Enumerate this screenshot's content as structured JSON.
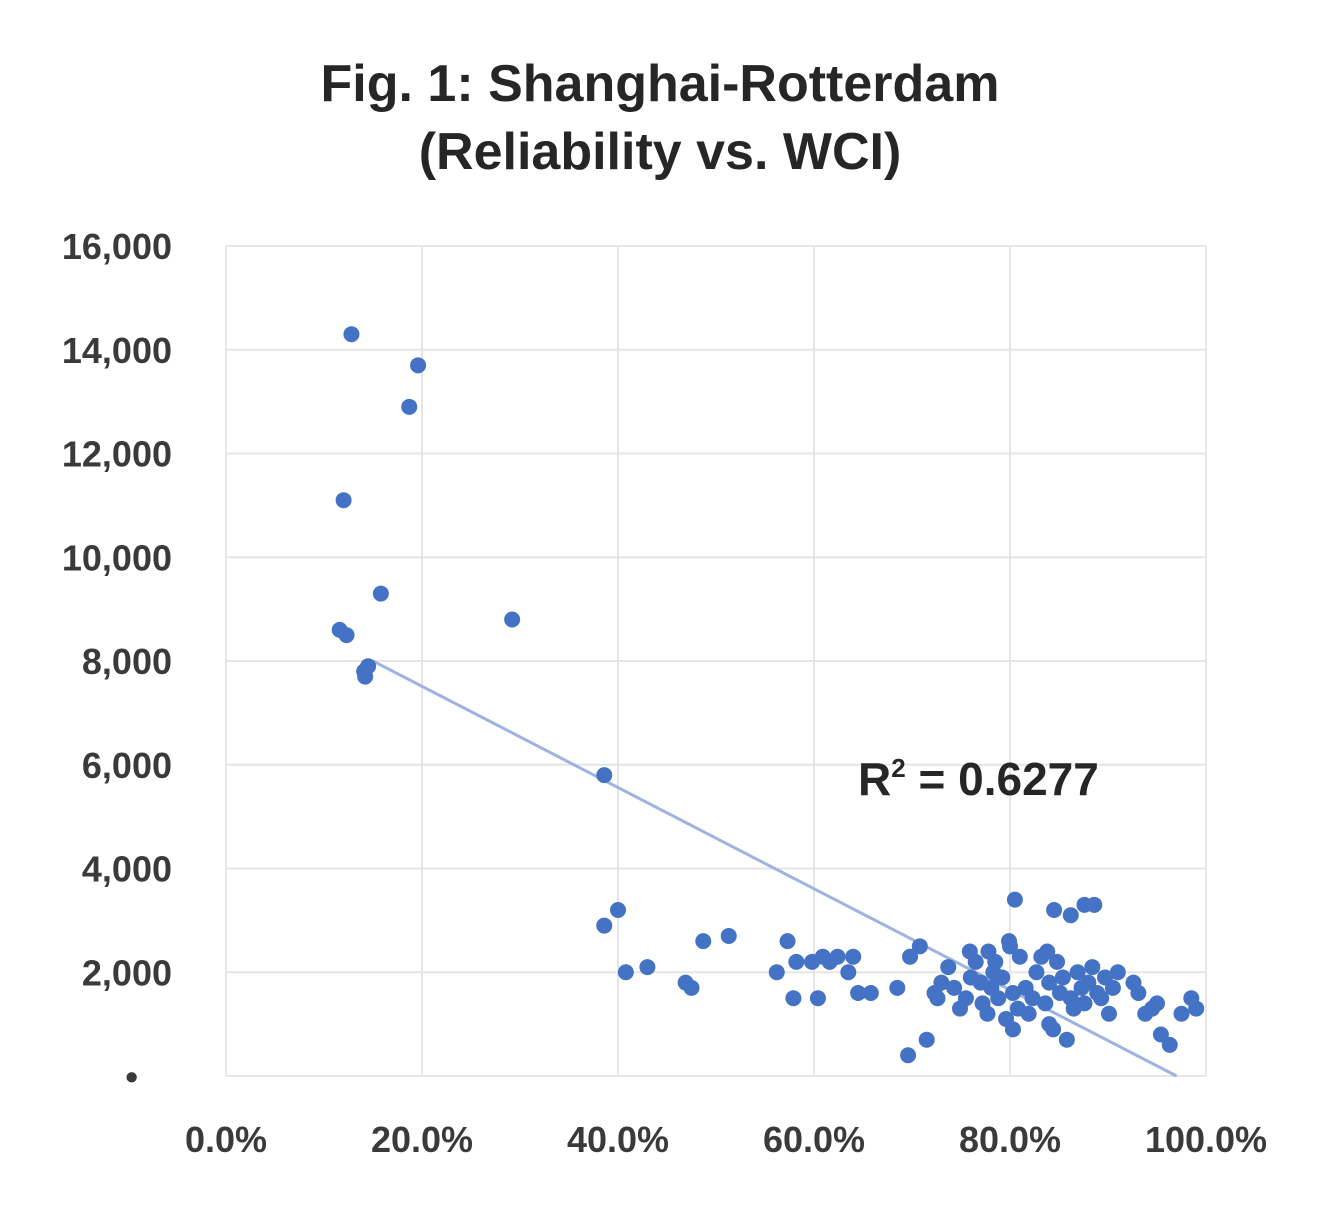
{
  "chart_data": {
    "type": "scatter",
    "title_lines": [
      "Fig. 1: Shanghai-Rotterdam",
      "(Reliability vs. WCI)"
    ],
    "xlabel": "",
    "ylabel": "",
    "xlim": [
      0,
      100
    ],
    "ylim": [
      0,
      16000
    ],
    "x_ticks": [
      "0.0%",
      "20.0%",
      "40.0%",
      "60.0%",
      "80.0%",
      "100.0%"
    ],
    "y_ticks": [
      "•",
      "2,000",
      "4,000",
      "6,000",
      "8,000",
      "10,000",
      "12,000",
      "14,000",
      "16,000"
    ],
    "grid": true,
    "annotation": {
      "base": "R",
      "sup": "2",
      "rest": " = 0.6277"
    },
    "trendline": {
      "x": [
        15.0,
        97.0
      ],
      "y": [
        8000,
        0
      ]
    },
    "marker_color": "#4472c4",
    "trendline_color": "#9db3e0",
    "grid_color": "#e6e6e6",
    "series": [
      {
        "x": [
          12.8,
          12.0,
          18.7,
          19.6,
          12.3,
          15.8,
          11.6,
          14.1,
          14.5,
          14.2,
          29.2,
          38.6,
          38.6,
          40.0,
          40.8,
          43.0,
          46.9,
          47.5,
          48.7,
          51.3,
          56.2,
          57.3,
          57.9,
          58.2,
          59.8,
          60.4,
          60.9,
          61.6,
          62.4,
          63.5,
          64.0,
          64.5,
          65.8,
          68.5,
          69.6,
          69.8,
          70.8,
          71.5,
          72.3,
          72.6,
          73.0,
          73.7,
          74.3,
          74.9,
          75.5,
          75.9,
          76.5,
          77.0,
          77.2,
          77.7,
          78.1,
          78.3,
          78.8,
          79.2,
          79.6,
          79.9,
          80.3,
          80.8,
          81.0,
          81.6,
          81.9,
          82.3,
          82.7,
          83.2,
          83.6,
          84.0,
          84.4,
          84.8,
          85.1,
          85.4,
          85.8,
          86.2,
          86.5,
          86.9,
          87.3,
          87.6,
          88.0,
          88.4,
          88.9,
          89.3,
          89.7,
          90.1,
          90.5,
          91.0,
          92.6,
          93.1,
          93.8,
          94.5,
          95.0,
          95.4,
          96.3,
          97.5,
          98.5,
          99.0,
          80.5,
          80.0,
          84.5,
          86.2,
          87.6,
          88.6,
          83.8,
          84.0,
          78.5,
          80.3,
          76.0,
          77.8
        ],
        "y": [
          14300,
          11100,
          12900,
          13700,
          8500,
          9300,
          8600,
          7800,
          7900,
          7700,
          8800,
          5800,
          2900,
          3200,
          2000,
          2100,
          1800,
          1700,
          2600,
          2700,
          2000,
          2600,
          1500,
          2200,
          2200,
          1500,
          2300,
          2200,
          2300,
          2000,
          2300,
          1600,
          1600,
          1700,
          400,
          2300,
          2500,
          700,
          1600,
          1500,
          1800,
          2100,
          1700,
          1300,
          1500,
          2400,
          2200,
          1800,
          1400,
          1200,
          1700,
          2000,
          1500,
          1900,
          1100,
          2600,
          1600,
          1300,
          2300,
          1700,
          1200,
          1500,
          2000,
          2300,
          1400,
          1800,
          900,
          2200,
          1600,
          1900,
          700,
          1500,
          1300,
          2000,
          1700,
          1400,
          1800,
          2100,
          1600,
          1500,
          1900,
          1200,
          1700,
          2000,
          1800,
          1600,
          1200,
          1300,
          1400,
          800,
          600,
          1200,
          1500,
          1300,
          3400,
          2500,
          3200,
          3100,
          3300,
          3300,
          2400,
          1000,
          2200,
          900,
          1900,
          2400
        ]
      }
    ]
  }
}
